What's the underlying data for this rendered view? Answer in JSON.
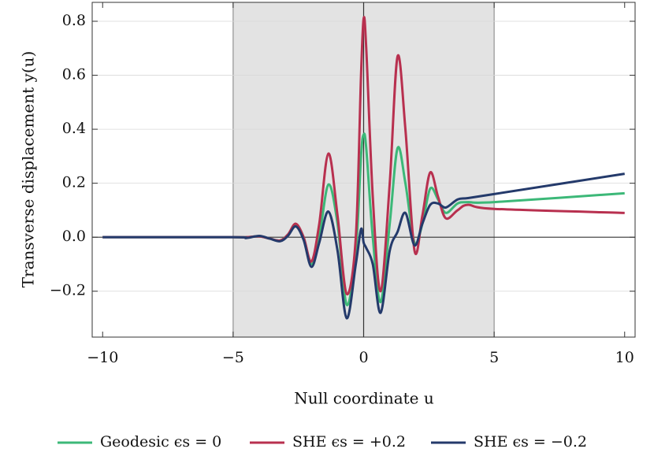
{
  "chart_data": {
    "type": "line",
    "xlabel": "Null coordinate u",
    "ylabel": "Transverse displacement y(u)",
    "x": [
      -10,
      -5,
      -4.5,
      -4,
      -3.6,
      -3.2,
      -2.9,
      -2.6,
      -2.3,
      -2.0,
      -1.7,
      -1.35,
      -1.0,
      -0.65,
      -0.3,
      -0.1,
      0,
      0.1,
      0.35,
      0.65,
      1.0,
      1.3,
      1.6,
      1.95,
      2.25,
      2.55,
      2.85,
      3.15,
      3.6,
      4,
      5,
      10
    ],
    "series": [
      {
        "name": "Geodesic ϵs = 0",
        "color": "#3cb878",
        "values": [
          0,
          0,
          0,
          0.003,
          -0.005,
          -0.012,
          0.01,
          0.045,
          0.0,
          -0.1,
          0.0,
          0.195,
          0.05,
          -0.25,
          -0.05,
          0.3,
          0.38,
          0.33,
          0.0,
          -0.24,
          0.05,
          0.33,
          0.2,
          -0.02,
          0.05,
          0.18,
          0.14,
          0.09,
          0.125,
          0.13,
          0.13,
          0.163
        ]
      },
      {
        "name": "SHE ϵs = +0.2",
        "color": "#b8304f",
        "values": [
          0,
          0,
          0,
          0.003,
          -0.005,
          -0.012,
          0.01,
          0.05,
          0.0,
          -0.09,
          0.05,
          0.31,
          0.08,
          -0.21,
          0.0,
          0.6,
          0.81,
          0.7,
          0.15,
          -0.2,
          0.2,
          0.67,
          0.4,
          -0.05,
          0.08,
          0.24,
          0.15,
          0.07,
          0.1,
          0.12,
          0.105,
          0.09
        ]
      },
      {
        "name": "SHE ϵs = −0.2",
        "color": "#243a6b",
        "values": [
          0,
          0,
          -0.003,
          0.005,
          -0.005,
          -0.015,
          0.005,
          0.04,
          -0.01,
          -0.11,
          -0.02,
          0.095,
          -0.05,
          -0.3,
          -0.1,
          0.03,
          -0.02,
          -0.04,
          -0.1,
          -0.28,
          -0.05,
          0.02,
          0.09,
          -0.03,
          0.05,
          0.12,
          0.125,
          0.11,
          0.14,
          0.145,
          0.16,
          0.235
        ]
      }
    ],
    "xlim": [
      -10.4,
      10.4
    ],
    "ylim": [
      -0.37,
      0.87
    ],
    "xticks": [
      {
        "value": -10,
        "label": "−10"
      },
      {
        "value": -5,
        "label": "−5"
      },
      0,
      5,
      10
    ],
    "yticks": [
      {
        "value": -0.2,
        "label": "−0.2"
      },
      {
        "value": 0,
        "label": "0.0"
      },
      0.2,
      0.4,
      0.6,
      0.8
    ],
    "shade": [
      -5,
      5
    ],
    "grid": true,
    "legend": "bottom"
  }
}
